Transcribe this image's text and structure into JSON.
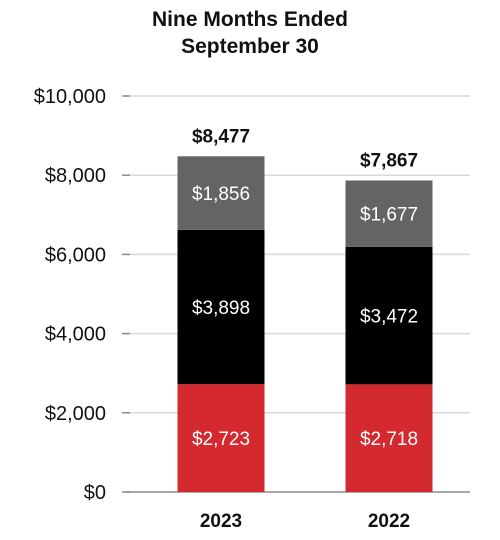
{
  "chart_data": {
    "type": "bar",
    "stacked": true,
    "title": [
      "Nine Months Ended",
      "September 30"
    ],
    "categories": [
      "2023",
      "2022"
    ],
    "totals": [
      "$8,477",
      "$7,867"
    ],
    "series": [
      {
        "values": [
          2723,
          2718
        ],
        "labels": [
          "$2,723",
          "$2,718"
        ],
        "color": "#d42a2f"
      },
      {
        "values": [
          3898,
          3472
        ],
        "labels": [
          "$3,898",
          "$3,472"
        ],
        "color": "#000000"
      },
      {
        "values": [
          1856,
          1677
        ],
        "labels": [
          "$1,856",
          "$1,677"
        ],
        "color": "#636466"
      }
    ],
    "ylim": [
      0,
      10000
    ],
    "yticks": [
      {
        "value": 0,
        "label": "$0"
      },
      {
        "value": 2000,
        "label": "$2,000"
      },
      {
        "value": 4000,
        "label": "$4,000"
      },
      {
        "value": 6000,
        "label": "$6,000"
      },
      {
        "value": 8000,
        "label": "$8,000"
      },
      {
        "value": 10000,
        "label": "$10,000"
      }
    ],
    "grid": true,
    "legend": "none",
    "colors": {
      "grid": "#d9d9d9",
      "axis": "#8c8c8c",
      "text": "#111111",
      "label_text": "#ffffff"
    }
  }
}
